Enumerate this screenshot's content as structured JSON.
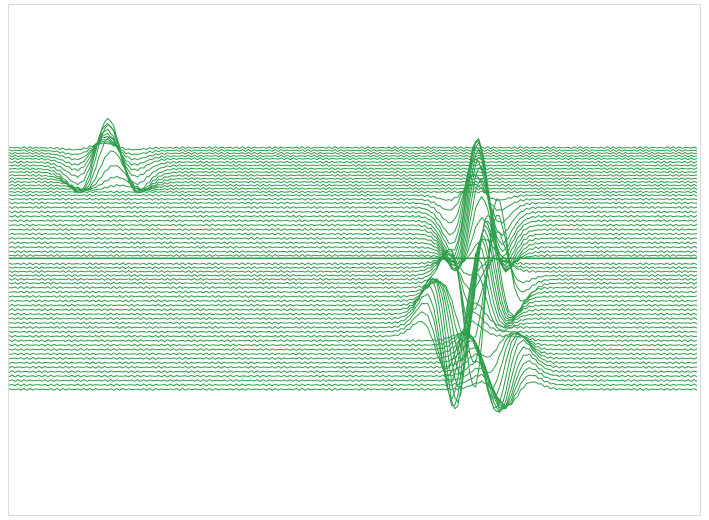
{
  "chart_data": {
    "type": "line",
    "title": "",
    "xlabel": "",
    "ylabel": "",
    "grid": false,
    "legend": "none",
    "line_color": "#2e9e4a",
    "x": {
      "min": 0,
      "max": 100
    },
    "y": {
      "min": -60,
      "max": 25
    },
    "baseline": {
      "offset": -19.0
    },
    "series": [
      {
        "offset": 1.0,
        "events": [
          {
            "center": 13.8,
            "amp": 0.8,
            "width": 3.5
          }
        ]
      },
      {
        "offset": 0.5,
        "events": [
          {
            "center": 13.9,
            "amp": 1.6,
            "width": 3.5
          }
        ]
      },
      {
        "offset": 0.0,
        "events": [
          {
            "center": 14.0,
            "amp": 2.5,
            "width": 3.5
          }
        ]
      },
      {
        "offset": -0.5,
        "events": [
          {
            "center": 14.0,
            "amp": 3.5,
            "width": 3.5
          }
        ]
      },
      {
        "offset": -1.0,
        "events": [
          {
            "center": 14.1,
            "amp": 4.5,
            "width": 3.5
          }
        ]
      },
      {
        "offset": -1.6,
        "events": [
          {
            "center": 14.2,
            "amp": 5.8,
            "width": 3.5
          }
        ]
      },
      {
        "offset": -2.2,
        "events": [
          {
            "center": 14.3,
            "amp": 7.5,
            "width": 3.5
          }
        ]
      },
      {
        "offset": -2.8,
        "events": [
          {
            "center": 14.4,
            "amp": 9.0,
            "width": 3.5
          }
        ]
      },
      {
        "offset": -3.4,
        "events": [
          {
            "center": 14.5,
            "amp": 8.5,
            "width": 3.5
          }
        ]
      },
      {
        "offset": -4.0,
        "events": [
          {
            "center": 14.7,
            "amp": 7.0,
            "width": 3.5
          }
        ]
      },
      {
        "offset": -4.6,
        "events": [
          {
            "center": 15.0,
            "amp": 5.0,
            "width": 3.5
          }
        ]
      },
      {
        "offset": -5.2,
        "events": [
          {
            "center": 15.3,
            "amp": 3.0,
            "width": 3.5
          }
        ]
      },
      {
        "offset": -5.8,
        "events": [
          {
            "center": 15.6,
            "amp": 1.5,
            "width": 3.5
          }
        ]
      },
      {
        "offset": -6.4,
        "events": [
          {
            "center": 16.0,
            "amp": 0.6,
            "width": 3.5
          }
        ]
      },
      {
        "offset": -7.0,
        "events": []
      },
      {
        "offset": -7.6,
        "events": [
          {
            "center": 67.5,
            "amp": 2.0,
            "width": 3.0
          }
        ]
      },
      {
        "offset": -8.3,
        "events": [
          {
            "center": 67.6,
            "amp": 4.5,
            "width": 3.0
          }
        ]
      },
      {
        "offset": -9.0,
        "events": [
          {
            "center": 67.8,
            "amp": 8.0,
            "width": 3.0
          }
        ]
      },
      {
        "offset": -9.8,
        "events": [
          {
            "center": 67.9,
            "amp": 11.0,
            "width": 3.0
          }
        ]
      },
      {
        "offset": -10.6,
        "events": [
          {
            "center": 68.0,
            "amp": 13.0,
            "width": 3.0
          }
        ]
      },
      {
        "offset": -11.4,
        "events": [
          {
            "center": 68.1,
            "amp": 14.0,
            "width": 3.0
          }
        ]
      },
      {
        "offset": -12.2,
        "events": [
          {
            "center": 68.1,
            "amp": 14.5,
            "width": 3.0
          }
        ]
      },
      {
        "offset": -13.0,
        "events": [
          {
            "center": 68.2,
            "amp": 14.8,
            "width": 3.0
          }
        ]
      },
      {
        "offset": -13.8,
        "events": [
          {
            "center": 68.3,
            "amp": 14.5,
            "width": 3.0
          }
        ]
      },
      {
        "offset": -14.6,
        "events": [
          {
            "center": 68.4,
            "amp": 14.0,
            "width": 3.0
          }
        ]
      },
      {
        "offset": -15.4,
        "events": [
          {
            "center": 68.5,
            "amp": 13.0,
            "width": 3.0
          }
        ]
      },
      {
        "offset": -16.2,
        "events": [
          {
            "center": 68.6,
            "amp": 11.5,
            "width": 3.0
          }
        ]
      },
      {
        "offset": -17.0,
        "events": [
          {
            "center": 68.7,
            "amp": 9.0,
            "width": 3.0
          }
        ]
      },
      {
        "offset": -17.8,
        "events": [
          {
            "center": 68.8,
            "amp": 6.0,
            "width": 3.0
          }
        ]
      },
      {
        "offset": -18.5,
        "events": [
          {
            "center": 69.0,
            "amp": 3.0,
            "width": 3.0
          }
        ]
      },
      {
        "offset": -20.0,
        "events": [
          {
            "center": 67.0,
            "amp": -2.0,
            "width": 3.0
          }
        ]
      },
      {
        "offset": -20.7,
        "events": [
          {
            "center": 67.2,
            "amp": -4.0,
            "width": 3.0
          }
        ]
      },
      {
        "offset": -21.4,
        "events": [
          {
            "center": 67.4,
            "amp": -7.0,
            "width": 3.0
          }
        ]
      },
      {
        "offset": -22.1,
        "events": [
          {
            "center": 67.6,
            "amp": -10.0,
            "width": 3.0
          },
          {
            "center": 70.5,
            "amp": 4.0,
            "width": 3.0
          }
        ]
      },
      {
        "offset": -22.8,
        "events": [
          {
            "center": 67.8,
            "amp": -13.0,
            "width": 3.0
          },
          {
            "center": 70.5,
            "amp": 7.0,
            "width": 3.0
          }
        ]
      },
      {
        "offset": -23.5,
        "events": [
          {
            "center": 67.9,
            "amp": -16.0,
            "width": 3.0
          },
          {
            "center": 70.5,
            "amp": 10.0,
            "width": 3.0
          }
        ]
      },
      {
        "offset": -24.3,
        "events": [
          {
            "center": 66.8,
            "amp": -4.0,
            "width": 3.0
          },
          {
            "center": 69.5,
            "amp": 12.0,
            "width": 3.0
          }
        ]
      },
      {
        "offset": -25.1,
        "events": [
          {
            "center": 66.5,
            "amp": -6.0,
            "width": 3.0
          },
          {
            "center": 69.3,
            "amp": 11.0,
            "width": 3.0
          }
        ]
      },
      {
        "offset": -25.9,
        "events": [
          {
            "center": 66.2,
            "amp": -8.0,
            "width": 3.0
          },
          {
            "center": 69.0,
            "amp": 10.0,
            "width": 3.0
          }
        ]
      },
      {
        "offset": -26.7,
        "events": [
          {
            "center": 65.9,
            "amp": -10.0,
            "width": 3.0
          },
          {
            "center": 68.8,
            "amp": 9.0,
            "width": 3.0
          }
        ]
      },
      {
        "offset": -27.5,
        "events": [
          {
            "center": 65.6,
            "amp": -12.0,
            "width": 3.0
          },
          {
            "center": 68.5,
            "amp": 8.0,
            "width": 3.0
          }
        ]
      },
      {
        "offset": -28.3,
        "events": [
          {
            "center": 65.3,
            "amp": -14.0,
            "width": 3.0
          },
          {
            "center": 68.3,
            "amp": 7.0,
            "width": 3.0
          }
        ]
      },
      {
        "offset": -29.1,
        "events": [
          {
            "center": 65.0,
            "amp": -15.0,
            "width": 3.0
          },
          {
            "center": 68.0,
            "amp": 6.0,
            "width": 3.0
          }
        ]
      },
      {
        "offset": -29.9,
        "events": [
          {
            "center": 64.7,
            "amp": -14.0,
            "width": 3.0
          },
          {
            "center": 67.8,
            "amp": 5.0,
            "width": 3.0
          }
        ]
      },
      {
        "offset": -30.7,
        "events": [
          {
            "center": 64.4,
            "amp": -12.0,
            "width": 3.0
          },
          {
            "center": 67.6,
            "amp": 4.0,
            "width": 3.0
          }
        ]
      },
      {
        "offset": -31.5,
        "events": [
          {
            "center": 64.1,
            "amp": -10.0,
            "width": 3.0
          }
        ]
      },
      {
        "offset": -32.3,
        "events": [
          {
            "center": 63.8,
            "amp": -8.0,
            "width": 3.0
          }
        ]
      },
      {
        "offset": -33.1,
        "events": [
          {
            "center": 63.5,
            "amp": -6.0,
            "width": 3.0
          }
        ]
      },
      {
        "offset": -33.9,
        "events": [
          {
            "center": 69.5,
            "amp": -3.0,
            "width": 3.0
          }
        ]
      },
      {
        "offset": -34.7,
        "events": [
          {
            "center": 69.8,
            "amp": -5.0,
            "width": 3.0
          }
        ]
      },
      {
        "offset": -35.5,
        "events": [
          {
            "center": 70.1,
            "amp": -7.0,
            "width": 3.0
          }
        ]
      },
      {
        "offset": -36.3,
        "events": [
          {
            "center": 70.4,
            "amp": -8.0,
            "width": 3.0
          }
        ]
      },
      {
        "offset": -37.1,
        "events": [
          {
            "center": 70.7,
            "amp": -9.0,
            "width": 3.0
          }
        ]
      },
      {
        "offset": -37.9,
        "events": [
          {
            "center": 71.0,
            "amp": -9.0,
            "width": 3.0
          }
        ]
      },
      {
        "offset": -38.7,
        "events": [
          {
            "center": 71.3,
            "amp": -8.0,
            "width": 3.0
          }
        ]
      },
      {
        "offset": -39.5,
        "events": [
          {
            "center": 71.6,
            "amp": -7.0,
            "width": 3.0
          }
        ]
      },
      {
        "offset": -40.3,
        "events": [
          {
            "center": 71.8,
            "amp": -6.0,
            "width": 3.0
          }
        ]
      },
      {
        "offset": -41.1,
        "events": [
          {
            "center": 72.0,
            "amp": -5.0,
            "width": 3.0
          }
        ]
      },
      {
        "offset": -41.9,
        "events": [
          {
            "center": 72.2,
            "amp": -4.0,
            "width": 3.0
          }
        ]
      },
      {
        "offset": -42.7,
        "events": [
          {
            "center": 72.4,
            "amp": -3.0,
            "width": 3.0
          }
        ]
      }
    ]
  }
}
